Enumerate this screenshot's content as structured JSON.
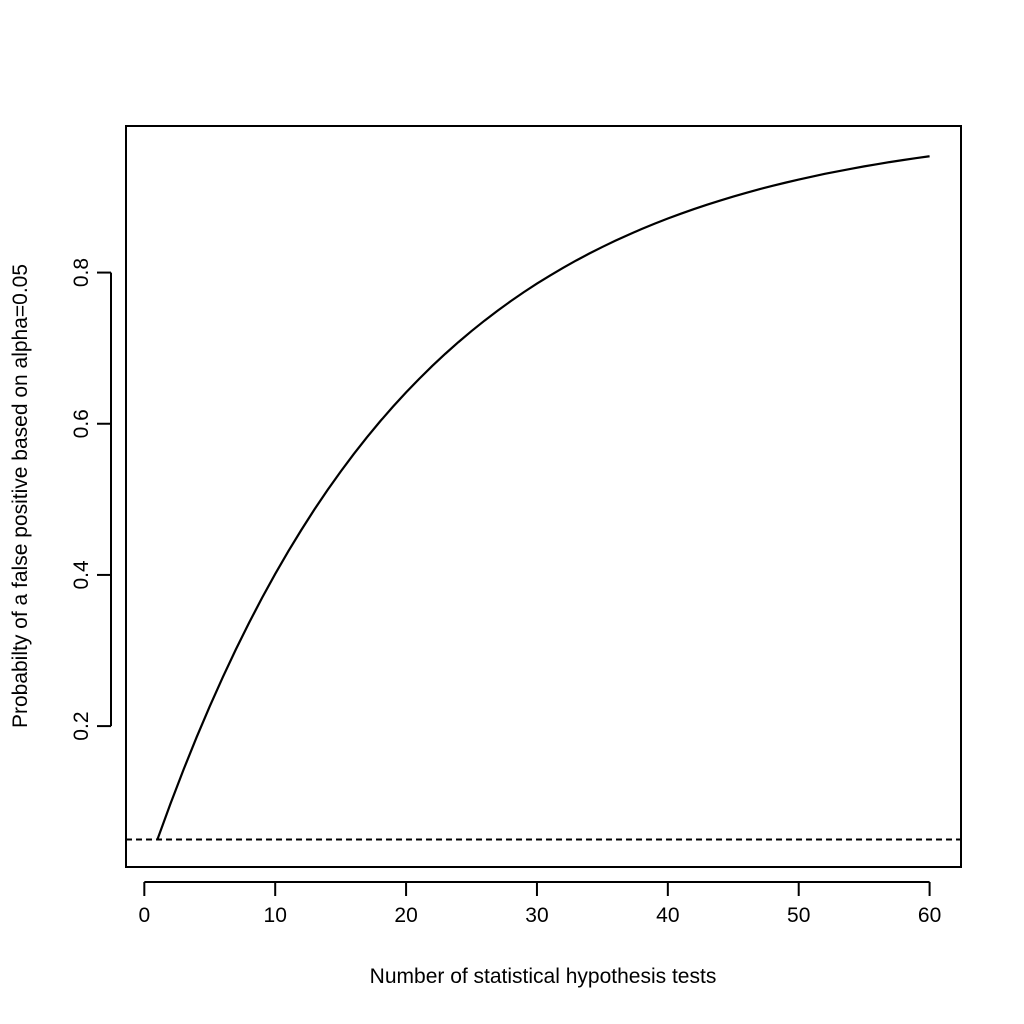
{
  "chart_data": {
    "type": "line",
    "title": "",
    "xlabel": "Number of statistical hypothesis tests",
    "ylabel": "Probabilty of a false positive based on alpha=0.05",
    "xlim": [
      -1.4,
      62.4
    ],
    "ylim": [
      0.0136,
      0.9939
    ],
    "x_ticks": [
      0,
      10,
      20,
      30,
      40,
      50,
      60
    ],
    "x_tick_labels": [
      "0",
      "10",
      "20",
      "30",
      "40",
      "50",
      "60"
    ],
    "y_ticks": [
      0.2,
      0.4,
      0.6,
      0.8
    ],
    "y_tick_labels": [
      "0.2",
      "0.4",
      "0.6",
      "0.8"
    ],
    "grid": false,
    "legend": "none",
    "series": [
      {
        "style": "solid",
        "color": "#000000",
        "x": [
          1,
          2,
          3,
          4,
          5,
          6,
          7,
          8,
          9,
          10,
          11,
          12,
          13,
          14,
          15,
          16,
          17,
          18,
          19,
          20,
          21,
          22,
          23,
          24,
          25,
          26,
          27,
          28,
          29,
          30,
          31,
          32,
          33,
          34,
          35,
          36,
          37,
          38,
          39,
          40,
          41,
          42,
          43,
          44,
          45,
          46,
          47,
          48,
          49,
          50,
          51,
          52,
          53,
          54,
          55,
          56,
          57,
          58,
          59,
          60
        ],
        "y": [
          0.05,
          0.0975,
          0.1426,
          0.1855,
          0.2262,
          0.2649,
          0.3017,
          0.3366,
          0.3698,
          0.4013,
          0.4312,
          0.4596,
          0.4867,
          0.5123,
          0.5367,
          0.5599,
          0.5819,
          0.6028,
          0.6226,
          0.6415,
          0.6594,
          0.6765,
          0.6926,
          0.708,
          0.7226,
          0.7365,
          0.7497,
          0.7622,
          0.7741,
          0.7854,
          0.7961,
          0.8063,
          0.816,
          0.8252,
          0.8339,
          0.8422,
          0.8501,
          0.8576,
          0.8647,
          0.8715,
          0.8779,
          0.884,
          0.8898,
          0.8953,
          0.9006,
          0.9055,
          0.9103,
          0.9147,
          0.919,
          0.9231,
          0.9269,
          0.9306,
          0.934,
          0.9373,
          0.9405,
          0.9434,
          0.9463,
          0.9489,
          0.9515,
          0.9539
        ]
      },
      {
        "style": "dashed",
        "color": "#000000",
        "x": [
          -1.4,
          62.4
        ],
        "y": [
          0.05,
          0.05
        ]
      }
    ]
  }
}
